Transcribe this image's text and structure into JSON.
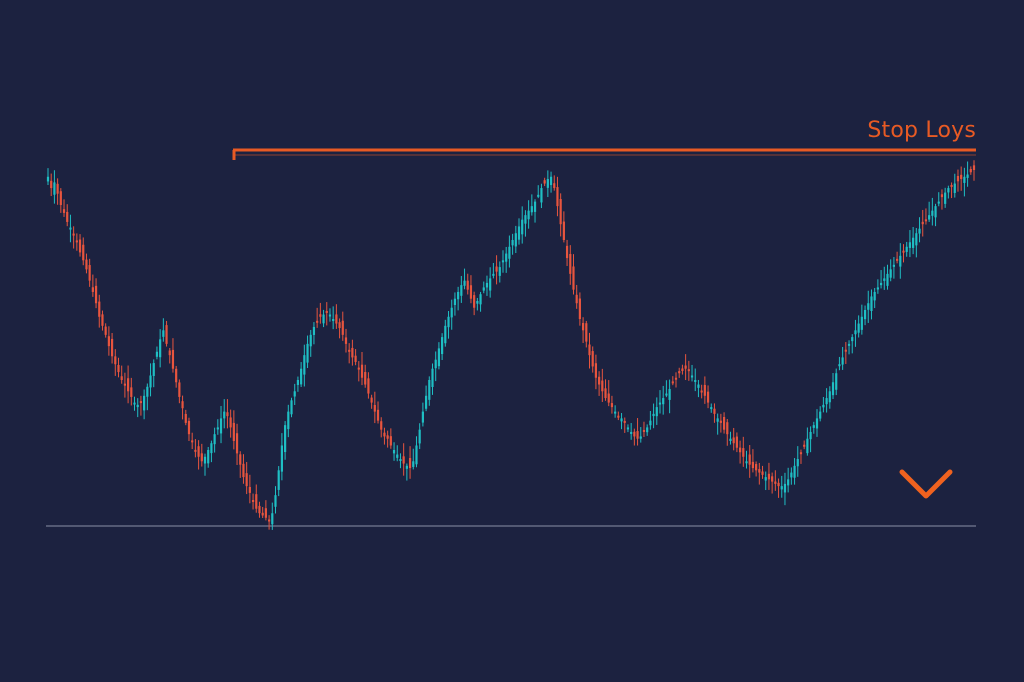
{
  "chart_data": {
    "type": "candlestick",
    "title": "",
    "xlabel": "",
    "ylabel": "",
    "axes_visible": false,
    "grid": false,
    "colors": {
      "background": "#1c2240",
      "bullish": "#1fbfc4",
      "bearish": "#e8553e",
      "stop_loss_line": "#e85a24",
      "arrow": "#f0621f",
      "baseline": "#8a90a6"
    },
    "closes": [
      500,
      490,
      495,
      485,
      475,
      468,
      460,
      455,
      448,
      442,
      433,
      426,
      418,
      408,
      398,
      388,
      376,
      368,
      360,
      350,
      341,
      334,
      327,
      320,
      315,
      310,
      305,
      300,
      298,
      300,
      306,
      314,
      324,
      335,
      345,
      356,
      364,
      352,
      342,
      330,
      318,
      305,
      295,
      282,
      272,
      265,
      258,
      252,
      248,
      252,
      258,
      264,
      272,
      278,
      286,
      292,
      288,
      278,
      266,
      255,
      245,
      234,
      226,
      220,
      212,
      206,
      202,
      200,
      198,
      196,
      202,
      218,
      240,
      262,
      280,
      292,
      302,
      310,
      320,
      330,
      342,
      352,
      360,
      367,
      372,
      376,
      378,
      380,
      378,
      374,
      370,
      366,
      360,
      352,
      345,
      340,
      336,
      330,
      322,
      316,
      308,
      300,
      292,
      284,
      276,
      270,
      268,
      262,
      258,
      254,
      250,
      246,
      244,
      242,
      248,
      262,
      276,
      292,
      306,
      320,
      330,
      338,
      348,
      358,
      368,
      376,
      384,
      392,
      398,
      404,
      408,
      400,
      392,
      384,
      390,
      396,
      402,
      406,
      410,
      414,
      416,
      420,
      426,
      432,
      438,
      444,
      450,
      456,
      462,
      466,
      470,
      474,
      478,
      484,
      490,
      494,
      498,
      500,
      490,
      474,
      458,
      444,
      428,
      414,
      400,
      388,
      374,
      364,
      354,
      342,
      332,
      322,
      316,
      310,
      304,
      300,
      296,
      292,
      288,
      286,
      282,
      278,
      274,
      270,
      268,
      270,
      274,
      278,
      284,
      290,
      296,
      300,
      304,
      308,
      312,
      318,
      322,
      326,
      328,
      330,
      328,
      324,
      320,
      316,
      310,
      306,
      300,
      296,
      290,
      286,
      282,
      276,
      272,
      268,
      264,
      260,
      256,
      252,
      248,
      245,
      242,
      240,
      238,
      236,
      234,
      232,
      230,
      228,
      226,
      226,
      228,
      232,
      238,
      244,
      250,
      256,
      262,
      268,
      274,
      280,
      286,
      292,
      298,
      304,
      310,
      318,
      326,
      334,
      340,
      346,
      352,
      358,
      364,
      370,
      376,
      382,
      388,
      394,
      398,
      402,
      406,
      410,
      414,
      418,
      422,
      426,
      430,
      434,
      438,
      442,
      446,
      450,
      454,
      458,
      462,
      466,
      470,
      474,
      478,
      482,
      486,
      490,
      492,
      494,
      496,
      498,
      500,
      502,
      504,
      506
    ],
    "stop_loss": {
      "label": "Stop Loys",
      "orientation": "horizontal",
      "position": "top"
    },
    "arrow": {
      "direction": "down",
      "position": "right"
    }
  }
}
